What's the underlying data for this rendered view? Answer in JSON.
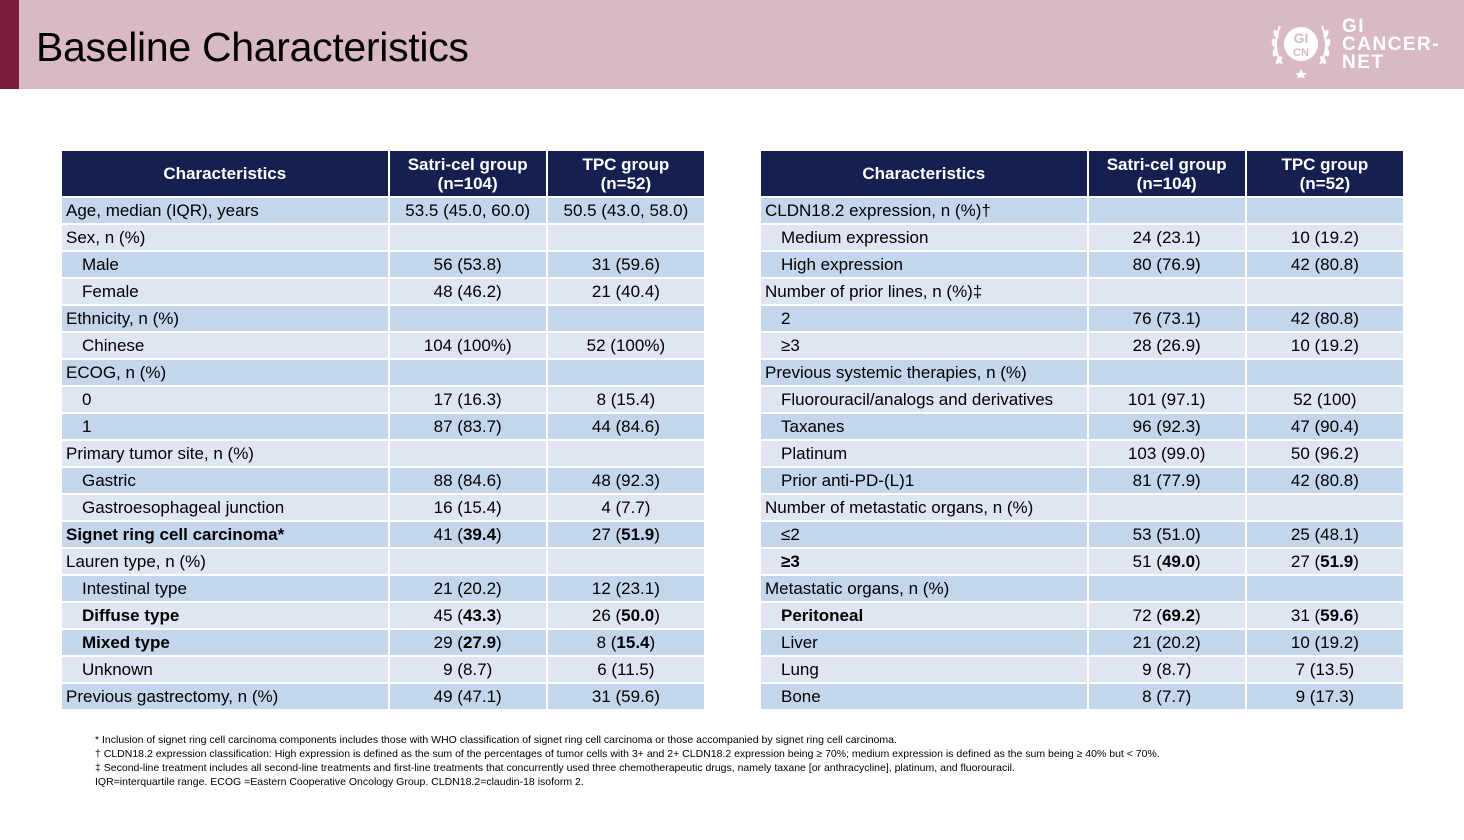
{
  "title": "Baseline Characteristics",
  "logo": {
    "line1": "GI",
    "line2": "CANCER-",
    "line3": "NET",
    "mark_top": "GI",
    "mark_bottom": "CN"
  },
  "table_headers": [
    "Characteristics",
    "Satri-cel group\n(n=104)",
    "TPC group\n(n=52)"
  ],
  "left_rows": [
    {
      "label": "Age, median (IQR), years",
      "satri": "53.5 (45.0, 60.0)",
      "tpc": "50.5 (43.0, 58.0)",
      "indent": false,
      "bold": false
    },
    {
      "label": "Sex, n (%)",
      "satri": "",
      "tpc": "",
      "indent": false,
      "bold": false
    },
    {
      "label": "Male",
      "satri": "56 (53.8)",
      "tpc": "31 (59.6)",
      "indent": true,
      "bold": false
    },
    {
      "label": "Female",
      "satri": "48 (46.2)",
      "tpc": "21 (40.4)",
      "indent": true,
      "bold": false
    },
    {
      "label": "Ethnicity, n (%)",
      "satri": "",
      "tpc": "",
      "indent": false,
      "bold": false
    },
    {
      "label": "Chinese",
      "satri": "104 (100%)",
      "tpc": "52 (100%)",
      "indent": true,
      "bold": false
    },
    {
      "label": "ECOG, n (%)",
      "satri": "",
      "tpc": "",
      "indent": false,
      "bold": false
    },
    {
      "label": "0",
      "satri": "17 (16.3)",
      "tpc": "8 (15.4)",
      "indent": true,
      "bold": false
    },
    {
      "label": "1",
      "satri": "87 (83.7)",
      "tpc": "44 (84.6)",
      "indent": true,
      "bold": false
    },
    {
      "label": "Primary tumor site, n (%)",
      "satri": "",
      "tpc": "",
      "indent": false,
      "bold": false
    },
    {
      "label": "Gastric",
      "satri": "88 (84.6)",
      "tpc": "48 (92.3)",
      "indent": true,
      "bold": false
    },
    {
      "label": "Gastroesophageal junction",
      "satri": "16 (15.4)",
      "tpc": "4 (7.7)",
      "indent": true,
      "bold": false
    },
    {
      "label": "Signet ring cell carcinoma*",
      "satri": "41 (39.4)",
      "tpc": "27 (51.9)",
      "indent": false,
      "bold": true
    },
    {
      "label": "Lauren type, n (%)",
      "satri": "",
      "tpc": "",
      "indent": false,
      "bold": false
    },
    {
      "label": "Intestinal type",
      "satri": "21 (20.2)",
      "tpc": "12 (23.1)",
      "indent": true,
      "bold": false
    },
    {
      "label": "Diffuse type",
      "satri": "45 (43.3)",
      "tpc": "26 (50.0)",
      "indent": true,
      "bold": true
    },
    {
      "label": "Mixed type",
      "satri": "29 (27.9)",
      "tpc": "8 (15.4)",
      "indent": true,
      "bold": true
    },
    {
      "label": "Unknown",
      "satri": "9 (8.7)",
      "tpc": "6 (11.5)",
      "indent": true,
      "bold": false
    },
    {
      "label": "Previous gastrectomy, n (%)",
      "satri": "49 (47.1)",
      "tpc": "31 (59.6)",
      "indent": false,
      "bold": false
    }
  ],
  "right_rows": [
    {
      "label": "CLDN18.2 expression, n (%)†",
      "satri": "",
      "tpc": "",
      "indent": false,
      "bold": false
    },
    {
      "label": "Medium expression",
      "satri": "24 (23.1)",
      "tpc": "10 (19.2)",
      "indent": true,
      "bold": false
    },
    {
      "label": "High expression",
      "satri": "80 (76.9)",
      "tpc": "42 (80.8)",
      "indent": true,
      "bold": false
    },
    {
      "label": "Number of prior lines, n (%)‡",
      "satri": "",
      "tpc": "",
      "indent": false,
      "bold": false
    },
    {
      "label": "2",
      "satri": "76 (73.1)",
      "tpc": "42 (80.8)",
      "indent": true,
      "bold": false
    },
    {
      "label": "≥3",
      "satri": "28 (26.9)",
      "tpc": "10 (19.2)",
      "indent": true,
      "bold": false
    },
    {
      "label": "Previous systemic therapies, n (%)",
      "satri": "",
      "tpc": "",
      "indent": false,
      "bold": false
    },
    {
      "label": "Fluorouracil/analogs and derivatives",
      "satri": "101 (97.1)",
      "tpc": "52 (100)",
      "indent": true,
      "bold": false
    },
    {
      "label": "Taxanes",
      "satri": "96 (92.3)",
      "tpc": "47 (90.4)",
      "indent": true,
      "bold": false
    },
    {
      "label": "Platinum",
      "satri": "103 (99.0)",
      "tpc": "50 (96.2)",
      "indent": true,
      "bold": false
    },
    {
      "label": "Prior anti-PD-(L)1",
      "satri": "81 (77.9)",
      "tpc": "42 (80.8)",
      "indent": true,
      "bold": false
    },
    {
      "label": "Number of metastatic organs, n (%)",
      "satri": "",
      "tpc": "",
      "indent": false,
      "bold": false
    },
    {
      "label": "≤2",
      "satri": "53 (51.0)",
      "tpc": "25 (48.1)",
      "indent": true,
      "bold": false
    },
    {
      "label": "≥3",
      "satri": "51 (49.0)",
      "tpc": "27 (51.9)",
      "indent": true,
      "bold": true
    },
    {
      "label": "Metastatic organs, n (%)",
      "satri": "",
      "tpc": "",
      "indent": false,
      "bold": false
    },
    {
      "label": "Peritoneal",
      "satri": "72 (69.2)",
      "tpc": "31 (59.6)",
      "indent": true,
      "bold": true
    },
    {
      "label": "Liver",
      "satri": "21 (20.2)",
      "tpc": "10 (19.2)",
      "indent": true,
      "bold": false
    },
    {
      "label": "Lung",
      "satri": "9 (8.7)",
      "tpc": "7 (13.5)",
      "indent": true,
      "bold": false
    },
    {
      "label": "Bone",
      "satri": "8 (7.7)",
      "tpc": "9 (17.3)",
      "indent": true,
      "bold": false
    }
  ],
  "footnotes": [
    "* Inclusion of signet ring cell carcinoma components includes those with WHO classification of signet ring cell carcinoma or those accompanied by signet ring cell carcinoma.",
    "† CLDN18.2 expression classification: High expression is defined as the sum of the percentages of tumor cells with 3+ and 2+ CLDN18.2 expression being ≥ 70%; medium expression is defined as the sum being ≥ 40% but < 70%.",
    "‡ Second-line treatment includes all second-line treatments and first-line treatments that concurrently used three chemotherapeutic drugs, namely taxane [or anthracycline], platinum, and fluorouracil.",
    "IQR=interquartile range. ECOG =Eastern Cooperative Oncology Group. CLDN18.2=claudin-18 isoform 2."
  ],
  "colors": {
    "header_band": "#d9b9c6",
    "accent": "#7b1c3c",
    "table_header": "#152050",
    "row_dark": "#c3d6ec",
    "row_light": "#dfe5f2"
  }
}
